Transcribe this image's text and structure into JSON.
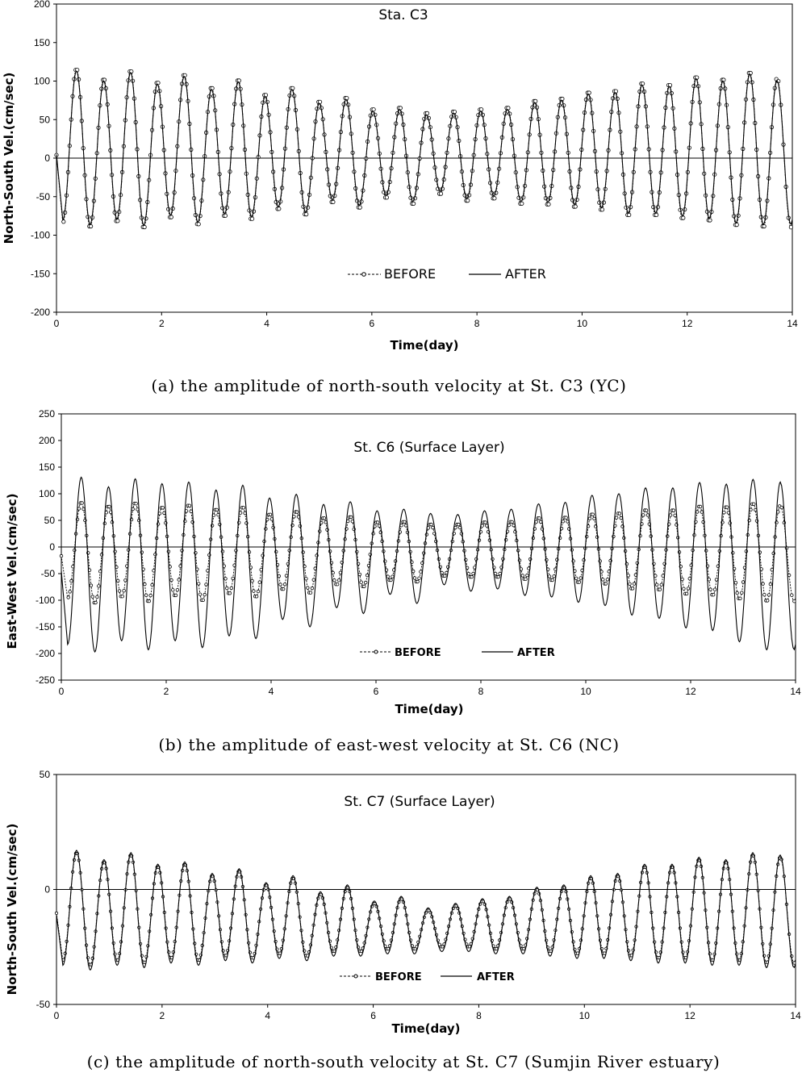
{
  "chart_data": [
    {
      "type": "line",
      "panel": "a",
      "title": "Sta. C3",
      "xlabel": "Time(day)",
      "ylabel": "North-South Vel.(cm/sec)",
      "xlim": [
        0,
        14
      ],
      "ylim": [
        -200,
        200
      ],
      "xticks": [
        0,
        2,
        4,
        6,
        8,
        10,
        12,
        14
      ],
      "yticks": [
        -200,
        -150,
        -100,
        -50,
        0,
        50,
        100,
        150,
        200
      ],
      "legend_position": "bottom-center",
      "series": [
        {
          "name": "BEFORE",
          "style": "dashed-markers",
          "peak_x": [
            0.38,
            0.9,
            1.41,
            1.92,
            2.43,
            2.95,
            3.46,
            3.97,
            4.48,
            5.0,
            5.51,
            6.02,
            6.53,
            7.04,
            7.56,
            8.07,
            8.58,
            9.1,
            9.61,
            10.12,
            10.63,
            11.14,
            11.66,
            12.17,
            12.68,
            13.19,
            13.71
          ],
          "peak_y": [
            116,
            103,
            114,
            99,
            109,
            92,
            102,
            83,
            92,
            74,
            79,
            64,
            66,
            59,
            61,
            64,
            66,
            75,
            78,
            86,
            88,
            98,
            96,
            106,
            103,
            112,
            104
          ],
          "trough_x": [
            0.12,
            0.64,
            1.15,
            1.66,
            2.17,
            2.69,
            3.2,
            3.71,
            4.22,
            4.74,
            5.25,
            5.76,
            6.27,
            6.78,
            7.3,
            7.81,
            8.32,
            8.84,
            9.35,
            9.86,
            10.37,
            10.88,
            11.4,
            11.91,
            12.42,
            12.93,
            13.45
          ],
          "trough_y": [
            -84,
            -90,
            -83,
            -91,
            -78,
            -87,
            -76,
            -80,
            -67,
            -74,
            -58,
            -65,
            -52,
            -60,
            -47,
            -56,
            -53,
            -60,
            -61,
            -64,
            -68,
            -75,
            -75,
            -79,
            -82,
            -88,
            -90
          ]
        },
        {
          "name": "AFTER",
          "style": "solid",
          "peak_x": [
            0.38,
            0.9,
            1.41,
            1.92,
            2.43,
            2.95,
            3.46,
            3.97,
            4.48,
            5.0,
            5.51,
            6.02,
            6.53,
            7.04,
            7.56,
            8.07,
            8.58,
            9.1,
            9.61,
            10.12,
            10.63,
            11.14,
            11.66,
            12.17,
            12.68,
            13.19,
            13.71
          ],
          "peak_y": [
            113,
            100,
            111,
            96,
            106,
            89,
            99,
            80,
            89,
            71,
            76,
            61,
            63,
            56,
            58,
            61,
            63,
            72,
            75,
            83,
            85,
            95,
            93,
            103,
            100,
            109,
            101
          ],
          "trough_x": [
            0.12,
            0.64,
            1.15,
            1.66,
            2.17,
            2.69,
            3.2,
            3.71,
            4.22,
            4.74,
            5.25,
            5.76,
            6.27,
            6.78,
            7.3,
            7.81,
            8.32,
            8.84,
            9.35,
            9.86,
            10.37,
            10.88,
            11.4,
            11.91,
            12.42,
            12.93,
            13.45
          ],
          "trough_y": [
            -80,
            -86,
            -79,
            -87,
            -74,
            -83,
            -72,
            -76,
            -63,
            -70,
            -54,
            -61,
            -48,
            -56,
            -43,
            -52,
            -49,
            -56,
            -57,
            -60,
            -64,
            -71,
            -71,
            -75,
            -78,
            -84,
            -86
          ]
        }
      ]
    },
    {
      "type": "line",
      "panel": "b",
      "title": "St. C6 (Surface Layer)",
      "xlabel": "Time(day)",
      "ylabel": "East-West Vel.(cm/sec)",
      "xlim": [
        0,
        14
      ],
      "ylim": [
        -250,
        250
      ],
      "xticks": [
        0,
        2,
        4,
        6,
        8,
        10,
        12,
        14
      ],
      "yticks": [
        -250,
        -200,
        -150,
        -100,
        -50,
        0,
        50,
        100,
        150,
        200,
        250
      ],
      "legend_position": "bottom-center",
      "series": [
        {
          "name": "BEFORE",
          "style": "dashed-markers",
          "peak_x": [
            0.38,
            0.9,
            1.41,
            1.92,
            2.43,
            2.95,
            3.46,
            3.97,
            4.48,
            5.0,
            5.51,
            6.02,
            6.53,
            7.04,
            7.56,
            8.07,
            8.58,
            9.1,
            9.61,
            10.12,
            10.63,
            11.14,
            11.66,
            12.17,
            12.68,
            13.19,
            13.71
          ],
          "peak_y": [
            84,
            77,
            83,
            75,
            79,
            71,
            75,
            62,
            67,
            55,
            57,
            47,
            48,
            43,
            43,
            47,
            48,
            55,
            56,
            62,
            64,
            70,
            70,
            77,
            76,
            82,
            78
          ],
          "trough_x": [
            0.12,
            0.64,
            1.15,
            1.66,
            2.17,
            2.69,
            3.2,
            3.71,
            4.22,
            4.74,
            5.25,
            5.76,
            6.27,
            6.78,
            7.3,
            7.81,
            8.32,
            8.84,
            9.35,
            9.86,
            10.37,
            10.88,
            11.4,
            11.91,
            12.42,
            12.93,
            13.45
          ],
          "trough_y": [
            -96,
            -106,
            -94,
            -103,
            -92,
            -101,
            -88,
            -94,
            -80,
            -87,
            -71,
            -75,
            -63,
            -66,
            -55,
            -57,
            -57,
            -61,
            -63,
            -67,
            -70,
            -79,
            -81,
            -89,
            -91,
            -98,
            -102
          ]
        },
        {
          "name": "AFTER",
          "style": "solid",
          "peak_x": [
            0.38,
            0.9,
            1.41,
            1.92,
            2.43,
            2.95,
            3.46,
            3.97,
            4.48,
            5.0,
            5.51,
            6.02,
            6.53,
            7.04,
            7.56,
            8.07,
            8.58,
            9.1,
            9.61,
            10.12,
            10.63,
            11.14,
            11.66,
            12.17,
            12.68,
            13.19,
            13.71
          ],
          "peak_y": [
            131,
            113,
            128,
            119,
            122,
            107,
            116,
            92,
            99,
            80,
            85,
            68,
            71,
            63,
            61,
            68,
            71,
            81,
            84,
            97,
            100,
            111,
            111,
            121,
            118,
            127,
            122
          ],
          "trough_x": [
            0.12,
            0.64,
            1.15,
            1.66,
            2.17,
            2.69,
            3.2,
            3.71,
            4.22,
            4.74,
            5.25,
            5.76,
            6.27,
            6.78,
            7.3,
            7.81,
            8.32,
            8.84,
            9.35,
            9.86,
            10.37,
            10.88,
            11.4,
            11.91,
            12.42,
            12.93,
            13.45
          ],
          "trough_y": [
            -183,
            -197,
            -176,
            -193,
            -176,
            -189,
            -167,
            -172,
            -136,
            -150,
            -114,
            -125,
            -89,
            -106,
            -71,
            -83,
            -79,
            -91,
            -94,
            -104,
            -110,
            -128,
            -134,
            -152,
            -157,
            -178,
            -193
          ]
        }
      ]
    },
    {
      "type": "line",
      "panel": "c",
      "title": "St. C7 (Surface Layer)",
      "xlabel": "Time(day)",
      "ylabel": "North-South Vel.(cm/sec)",
      "xlim": [
        0,
        14
      ],
      "ylim": [
        -50,
        50
      ],
      "xticks": [
        0,
        2,
        4,
        6,
        8,
        10,
        12,
        14
      ],
      "yticks": [
        -50,
        0,
        50
      ],
      "legend_position": "bottom-center",
      "series": [
        {
          "name": "BEFORE",
          "style": "dashed-markers",
          "peak_x": [
            0.38,
            0.9,
            1.41,
            1.92,
            2.43,
            2.95,
            3.46,
            3.97,
            4.48,
            5.0,
            5.51,
            6.02,
            6.53,
            7.04,
            7.56,
            8.07,
            8.58,
            9.1,
            9.61,
            10.12,
            10.63,
            11.14,
            11.66,
            12.17,
            12.68,
            13.19,
            13.71
          ],
          "peak_y": [
            16,
            12,
            15,
            10,
            11,
            6,
            8,
            2,
            5,
            -2,
            1,
            -6,
            -4,
            -9,
            -7,
            -5,
            -4,
            0,
            1,
            5,
            6,
            10,
            10,
            13,
            12,
            15,
            14
          ],
          "trough_x": [
            0.12,
            0.64,
            1.15,
            1.66,
            2.17,
            2.69,
            3.2,
            3.71,
            4.22,
            4.74,
            5.25,
            5.76,
            6.27,
            6.78,
            7.3,
            7.81,
            8.32,
            8.84,
            9.35,
            9.86,
            10.37,
            10.88,
            11.4,
            11.91,
            12.42,
            12.93,
            13.45
          ],
          "trough_y": [
            -31,
            -33,
            -31,
            -32,
            -30,
            -31,
            -29,
            -30,
            -28,
            -29,
            -27,
            -27,
            -26,
            -26,
            -25,
            -25,
            -26,
            -26,
            -27,
            -28,
            -28,
            -29,
            -30,
            -30,
            -31,
            -31,
            -32
          ]
        },
        {
          "name": "AFTER",
          "style": "solid",
          "peak_x": [
            0.38,
            0.9,
            1.41,
            1.92,
            2.43,
            2.95,
            3.46,
            3.97,
            4.48,
            5.0,
            5.51,
            6.02,
            6.53,
            7.04,
            7.56,
            8.07,
            8.58,
            9.1,
            9.61,
            10.12,
            10.63,
            11.14,
            11.66,
            12.17,
            12.68,
            13.19,
            13.71
          ],
          "peak_y": [
            17,
            13,
            16,
            11,
            12,
            7,
            9,
            3,
            6,
            -1,
            2,
            -5,
            -3,
            -8,
            -6,
            -4,
            -3,
            1,
            2,
            6,
            7,
            11,
            11,
            14,
            13,
            16,
            15
          ],
          "trough_x": [
            0.12,
            0.64,
            1.15,
            1.66,
            2.17,
            2.69,
            3.2,
            3.71,
            4.22,
            4.74,
            5.25,
            5.76,
            6.27,
            6.78,
            7.3,
            7.81,
            8.32,
            8.84,
            9.35,
            9.86,
            10.37,
            10.88,
            11.4,
            11.91,
            12.42,
            12.93,
            13.45
          ],
          "trough_y": [
            -33,
            -35,
            -33,
            -34,
            -32,
            -33,
            -31,
            -32,
            -30,
            -31,
            -29,
            -29,
            -28,
            -28,
            -27,
            -27,
            -28,
            -28,
            -29,
            -30,
            -30,
            -31,
            -32,
            -32,
            -33,
            -33,
            -34
          ]
        }
      ]
    }
  ],
  "captions": {
    "a": "(a) the amplitude of north-south velocity at St. C3 (YC)",
    "b": "(b) the amplitude of east-west velocity at St. C6 (NC)",
    "c": "(c) the amplitude of north-south velocity at St. C7 (Sumjin River estuary)"
  }
}
